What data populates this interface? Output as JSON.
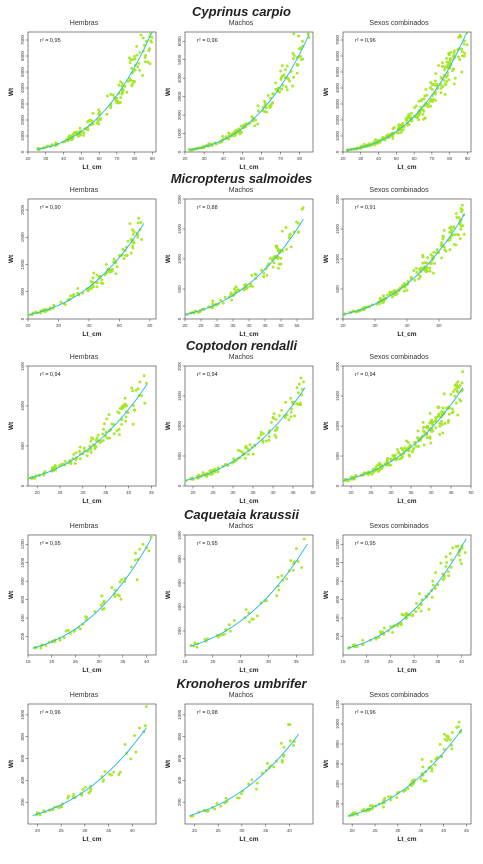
{
  "figure": {
    "panel_titles": [
      "Hembras",
      "Machos",
      "Sexos combinados"
    ]
  },
  "chart_data": [
    {
      "species": "Cyprinus carpio",
      "panels": [
        {
          "title": "Hembras",
          "type": "scatter",
          "xlabel": "Lt_cm",
          "ylabel": "Wt",
          "r2": "r² = 0,95",
          "xlim": [
            20,
            92
          ],
          "ylim": [
            0,
            7500
          ],
          "xticks": [
            20,
            30,
            40,
            50,
            60,
            70,
            80,
            90
          ],
          "yticks": [
            0,
            1000,
            2000,
            3000,
            4000,
            5000,
            6000,
            7000
          ],
          "a": 0.0095,
          "b": 3.02,
          "xmin": 25,
          "xmax": 90,
          "n": 150,
          "noise": 0.12
        },
        {
          "title": "Machos",
          "type": "scatter",
          "xlabel": "Lt_cm",
          "ylabel": "Wt",
          "r2": "r² = 0,96",
          "xlim": [
            20,
            87
          ],
          "ylim": [
            0,
            6500
          ],
          "xticks": [
            20,
            30,
            40,
            50,
            60,
            70,
            80
          ],
          "yticks": [
            0,
            1000,
            2000,
            3000,
            4000,
            5000,
            6000
          ],
          "a": 0.0095,
          "b": 3.02,
          "xmin": 22,
          "xmax": 85,
          "n": 150,
          "noise": 0.11
        },
        {
          "title": "Sexos combinados",
          "type": "scatter",
          "xlabel": "Lt_cm",
          "ylabel": "Wt",
          "r2": "r² = 0,96",
          "xlim": [
            20,
            92
          ],
          "ylim": [
            0,
            7500
          ],
          "xticks": [
            20,
            30,
            40,
            50,
            60,
            70,
            80,
            90
          ],
          "yticks": [
            0,
            1000,
            2000,
            3000,
            4000,
            5000,
            6000,
            7000
          ],
          "a": 0.0095,
          "b": 3.02,
          "xmin": 22,
          "xmax": 90,
          "n": 260,
          "noise": 0.12
        }
      ]
    },
    {
      "species": "Micropterus salmoides",
      "panels": [
        {
          "title": "Hembras",
          "type": "scatter",
          "xlabel": "Lt_cm",
          "ylabel": "Wt",
          "r2": "r² = 0,90",
          "xlim": [
            20,
            62
          ],
          "ylim": [
            0,
            2200
          ],
          "xticks": [
            20,
            30,
            40,
            50,
            60
          ],
          "yticks": [
            0,
            500,
            1000,
            1500,
            2000
          ],
          "a": 0.011,
          "b": 2.95,
          "xmin": 20,
          "xmax": 58,
          "n": 110,
          "noise": 0.1
        },
        {
          "title": "Machos",
          "type": "scatter",
          "xlabel": "Lt_cm",
          "ylabel": "Wt",
          "r2": "r² = 0,88",
          "xlim": [
            20,
            60
          ],
          "ylim": [
            0,
            2000
          ],
          "xticks": [
            20,
            25,
            30,
            35,
            40,
            45,
            50,
            55
          ],
          "yticks": [
            0,
            500,
            1000,
            1500,
            2000
          ],
          "a": 0.011,
          "b": 2.95,
          "xmin": 20,
          "xmax": 57,
          "n": 100,
          "noise": 0.1
        },
        {
          "title": "Sexos combinados",
          "type": "scatter",
          "xlabel": "Lt_cm",
          "ylabel": "Wt",
          "r2": "r² = 0,91",
          "xlim": [
            20,
            60
          ],
          "ylim": [
            0,
            2000
          ],
          "xticks": [
            20,
            30,
            40,
            50
          ],
          "yticks": [
            0,
            500,
            1000,
            1500,
            2000
          ],
          "a": 0.011,
          "b": 2.95,
          "xmin": 20,
          "xmax": 58,
          "n": 170,
          "noise": 0.1
        }
      ]
    },
    {
      "species": "Coptodon rendalli",
      "panels": [
        {
          "title": "Hembras",
          "type": "scatter",
          "xlabel": "Lt_cm",
          "ylabel": "Wt",
          "r2": "r² = 0,94",
          "xlim": [
            18,
            46
          ],
          "ylim": [
            0,
            1500
          ],
          "xticks": [
            20,
            25,
            30,
            35,
            40,
            45
          ],
          "yticks": [
            0,
            500,
            1000,
            1500
          ],
          "a": 0.018,
          "b": 2.95,
          "xmin": 18,
          "xmax": 44,
          "n": 120,
          "noise": 0.11
        },
        {
          "title": "Machos",
          "type": "scatter",
          "xlabel": "Lt_cm",
          "ylabel": "Wt",
          "r2": "r² = 0,94",
          "xlim": [
            18,
            50
          ],
          "ylim": [
            0,
            2000
          ],
          "xticks": [
            20,
            25,
            30,
            35,
            40,
            45,
            50
          ],
          "yticks": [
            0,
            500,
            1000,
            1500,
            2000
          ],
          "a": 0.018,
          "b": 2.95,
          "xmin": 18,
          "xmax": 48,
          "n": 110,
          "noise": 0.11
        },
        {
          "title": "Sexos combinados",
          "type": "scatter",
          "xlabel": "Lt_cm",
          "ylabel": "Wt",
          "r2": "r² = 0,94",
          "xlim": [
            18,
            50
          ],
          "ylim": [
            0,
            2000
          ],
          "xticks": [
            20,
            25,
            30,
            35,
            40,
            45,
            50
          ],
          "yticks": [
            0,
            500,
            1000,
            1500,
            2000
          ],
          "a": 0.018,
          "b": 2.95,
          "xmin": 18,
          "xmax": 48,
          "n": 210,
          "noise": 0.11
        }
      ]
    },
    {
      "species": "Caquetaia kraussii",
      "panels": [
        {
          "title": "Hembras",
          "type": "scatter",
          "xlabel": "Lt_cm",
          "ylabel": "Wt",
          "r2": "r² = 0,95",
          "xlim": [
            15,
            42
          ],
          "ylim": [
            0,
            1300
          ],
          "xticks": [
            15,
            20,
            25,
            30,
            35,
            40
          ],
          "yticks": [
            200,
            400,
            600,
            800,
            1000,
            1200
          ],
          "a": 0.017,
          "b": 3.02,
          "xmin": 16,
          "xmax": 41,
          "n": 55,
          "noise": 0.1
        },
        {
          "title": "Machos",
          "type": "scatter",
          "xlabel": "Lt_cm",
          "ylabel": "Wt",
          "r2": "r² = 0,95",
          "xlim": [
            15,
            38
          ],
          "ylim": [
            0,
            1000
          ],
          "xticks": [
            15,
            20,
            25,
            30,
            35
          ],
          "yticks": [
            200,
            400,
            600,
            800,
            1000
          ],
          "a": 0.017,
          "b": 3.02,
          "xmin": 16,
          "xmax": 37,
          "n": 45,
          "noise": 0.1
        },
        {
          "title": "Sexos combinados",
          "type": "scatter",
          "xlabel": "Lt_cm",
          "ylabel": "Wt",
          "r2": "r² = 0,95",
          "xlim": [
            15,
            42
          ],
          "ylim": [
            0,
            1300
          ],
          "xticks": [
            15,
            20,
            25,
            30,
            35,
            40
          ],
          "yticks": [
            200,
            400,
            600,
            800,
            1000,
            1200
          ],
          "a": 0.017,
          "b": 3.02,
          "xmin": 16,
          "xmax": 41,
          "n": 90,
          "noise": 0.1
        }
      ]
    },
    {
      "species": "Kronoheros umbrifer",
      "panels": [
        {
          "title": "Hembras",
          "type": "scatter",
          "xlabel": "Lt_cm",
          "ylabel": "Wt",
          "r2": "r² = 0,96",
          "xlim": [
            18,
            45
          ],
          "ylim": [
            0,
            1100
          ],
          "xticks": [
            20,
            25,
            30,
            35,
            40
          ],
          "yticks": [
            200,
            400,
            600,
            800,
            1000
          ],
          "a": 0.012,
          "b": 2.98,
          "xmin": 19,
          "xmax": 43,
          "n": 50,
          "noise": 0.1
        },
        {
          "title": "Machos",
          "type": "scatter",
          "xlabel": "Lt_cm",
          "ylabel": "Wt",
          "r2": "r² = 0,98",
          "xlim": [
            18,
            45
          ],
          "ylim": [
            0,
            1100
          ],
          "xticks": [
            20,
            25,
            30,
            35,
            40
          ],
          "yticks": [
            200,
            400,
            600,
            800,
            1000
          ],
          "a": 0.012,
          "b": 2.98,
          "xmin": 19,
          "xmax": 42,
          "n": 40,
          "noise": 0.1
        },
        {
          "title": "Sexos combinados",
          "type": "scatter",
          "xlabel": "Lt_cm",
          "ylabel": "Wt",
          "r2": "r² = 0,96",
          "xlim": [
            18,
            46
          ],
          "ylim": [
            0,
            1200
          ],
          "xticks": [
            20,
            25,
            30,
            35,
            40,
            45
          ],
          "yticks": [
            200,
            400,
            600,
            800,
            1000,
            1200
          ],
          "a": 0.012,
          "b": 2.98,
          "xmin": 19,
          "xmax": 44,
          "n": 80,
          "noise": 0.1
        }
      ]
    }
  ],
  "colors": {
    "points": "#aaee22",
    "points_stroke": "#88cc11",
    "curve": "#22b8e0",
    "axis": "#333333"
  }
}
